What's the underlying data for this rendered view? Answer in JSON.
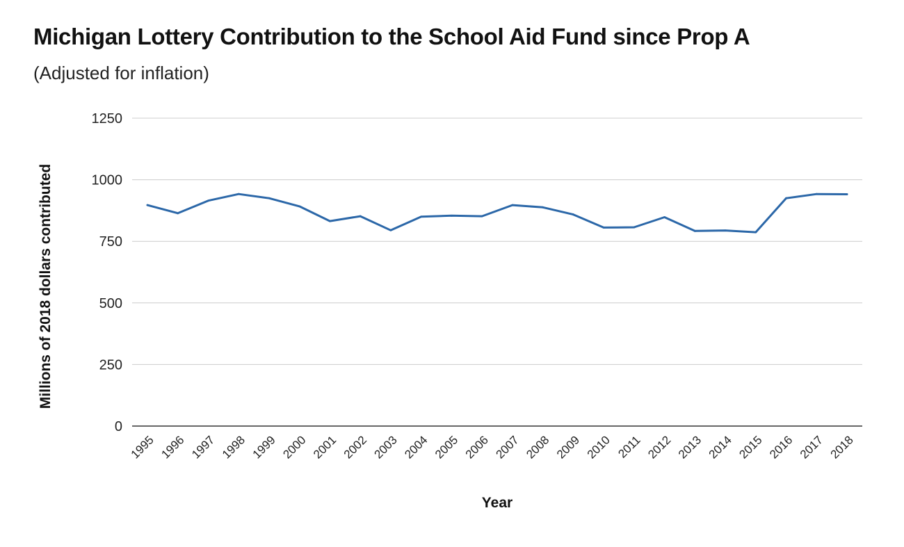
{
  "chart_data": {
    "type": "line",
    "title": "Michigan Lottery Contribution to the School Aid Fund since Prop A",
    "subtitle": "(Adjusted for inflation)",
    "xlabel": "Year",
    "ylabel": "Millions of 2018 dollars contributed",
    "ylim": [
      0,
      1250
    ],
    "yticks": [
      0,
      250,
      500,
      750,
      1000,
      1250
    ],
    "grid": true,
    "line_color": "#2b67a8",
    "categories": [
      "1995",
      "1996",
      "1997",
      "1998",
      "1999",
      "2000",
      "2001",
      "2002",
      "2003",
      "2004",
      "2005",
      "2006",
      "2007",
      "2008",
      "2009",
      "2010",
      "2011",
      "2012",
      "2013",
      "2014",
      "2015",
      "2016",
      "2017",
      "2018"
    ],
    "series": [
      {
        "values": [
          897,
          864,
          915,
          942,
          925,
          892,
          832,
          852,
          795,
          850,
          854,
          852,
          897,
          888,
          859,
          806,
          807,
          848,
          792,
          794,
          787,
          925,
          942,
          941
        ]
      }
    ]
  }
}
